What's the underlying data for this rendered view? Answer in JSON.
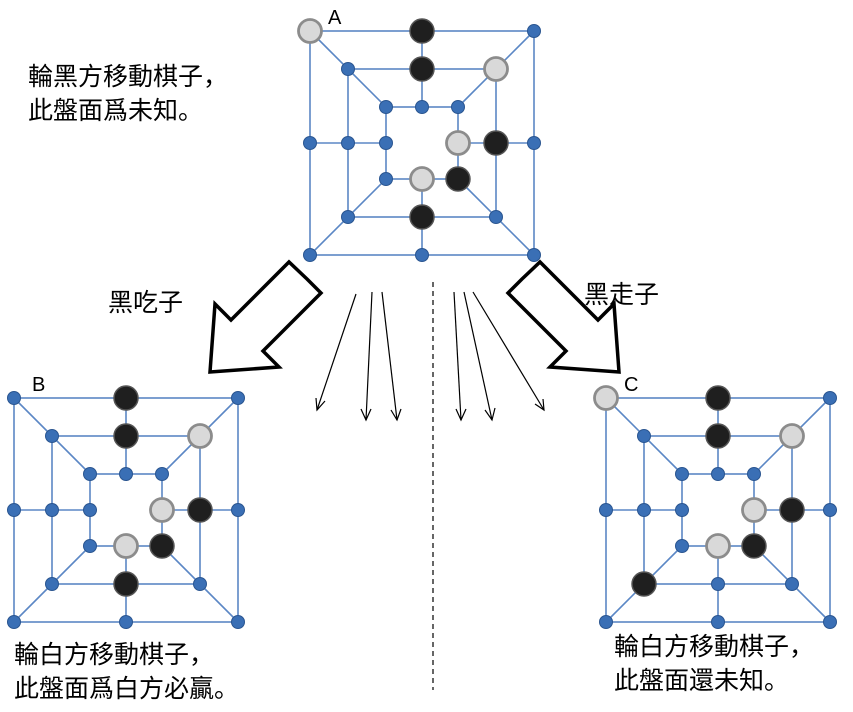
{
  "boards": [
    {
      "id": "A",
      "letter": "A",
      "white_points": [
        0,
        10,
        19,
        21
      ],
      "black_points": [
        1,
        9,
        11,
        13,
        20
      ]
    },
    {
      "id": "B",
      "letter": "B",
      "white_points": [
        10,
        19,
        21
      ],
      "black_points": [
        1,
        9,
        11,
        13,
        20
      ]
    },
    {
      "id": "C",
      "letter": "C",
      "white_points": [
        0,
        10,
        19,
        21
      ],
      "black_points": [
        1,
        9,
        11,
        14,
        20
      ]
    }
  ],
  "captions": {
    "a_line1": "輪黑方移動棋子，",
    "a_line2": "此盤面爲未知。",
    "b_line1": "輪白方移動棋子，",
    "b_line2": "此盤面爲白方必贏。",
    "c_line1": "輪白方移動棋子，",
    "c_line2": "此盤面還未知。"
  },
  "arrows": {
    "capture_label": "黑吃子",
    "move_label": "黑走子"
  },
  "colors": {
    "board_line": "#5b87c5",
    "point_fill": "#3a6fb5",
    "point_stroke": "#2a5590",
    "white_piece_fill": "#d9d9d9",
    "white_piece_stroke": "#8c8c8c",
    "black_piece_fill": "#1f1f1f",
    "black_piece_stroke": "#555555"
  }
}
